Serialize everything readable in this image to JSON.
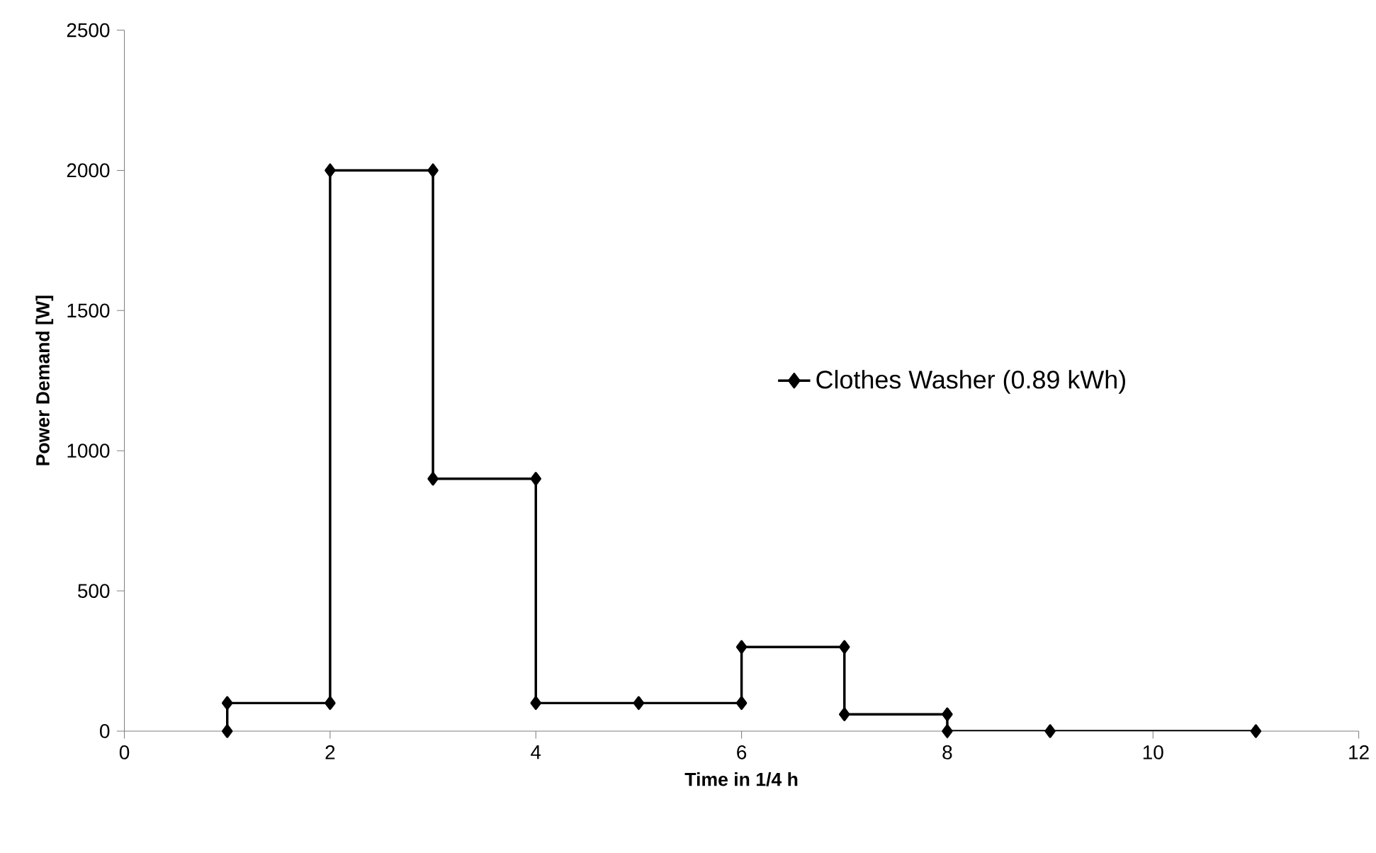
{
  "chart_data": {
    "type": "line",
    "xlabel": "Time in 1/4 h",
    "ylabel": "Power Demand [W]",
    "x": [
      1,
      1,
      2,
      2,
      3,
      3,
      4,
      4,
      5,
      6,
      6,
      7,
      7,
      8,
      8,
      9,
      11
    ],
    "series": [
      {
        "name": "Clothes Washer (0.89 kWh)",
        "color": "#000000",
        "values": [
          0,
          100,
          100,
          2000,
          2000,
          900,
          900,
          100,
          100,
          100,
          300,
          300,
          60,
          60,
          0,
          0,
          0
        ]
      }
    ],
    "xlim": [
      0,
      12
    ],
    "xticks": [
      0,
      2,
      4,
      6,
      8,
      10,
      12
    ],
    "ylim": [
      0,
      2500
    ],
    "yticks": [
      0,
      500,
      1000,
      1500,
      2000,
      2500
    ],
    "legend": "right",
    "marker": "diamond",
    "line_style": "solid",
    "grid": false
  }
}
